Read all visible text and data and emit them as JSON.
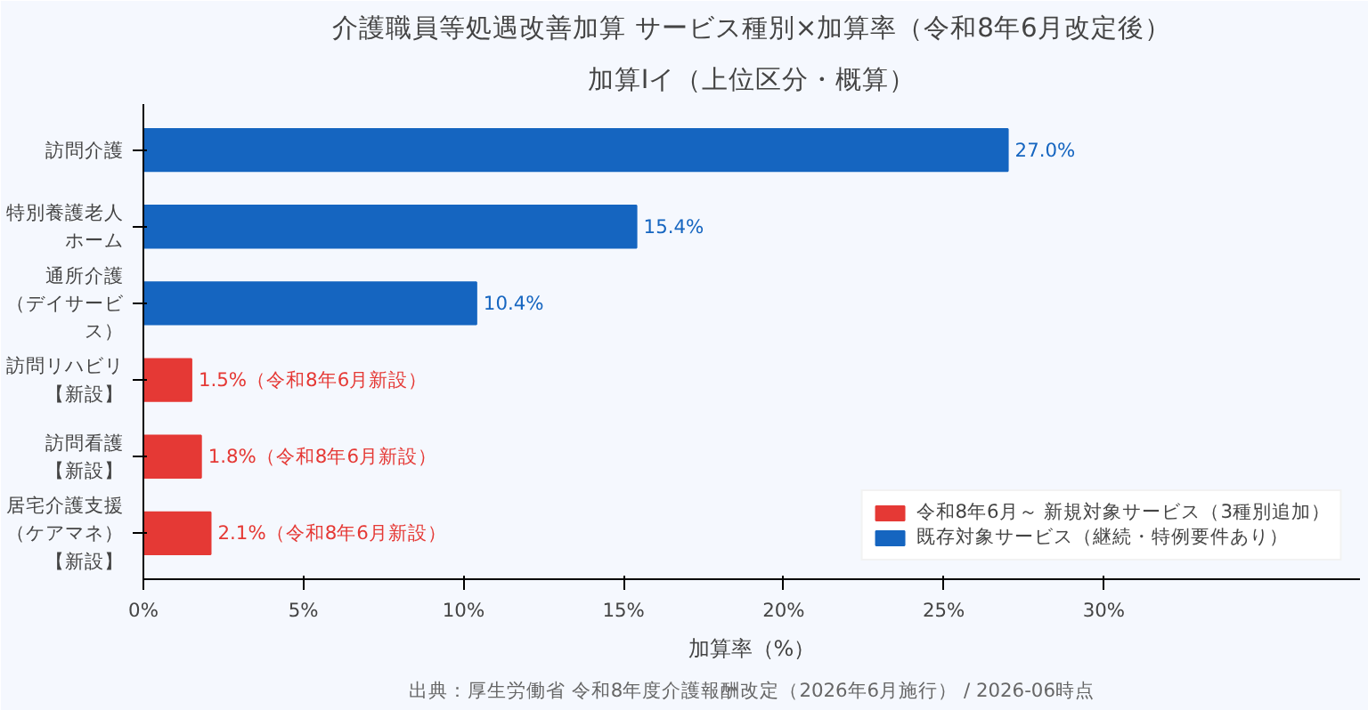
{
  "chart_data": {
    "type": "bar",
    "orientation": "horizontal",
    "title": "介護職員等処遇改善加算 サービス種別×加算率（令和8年6月改定後）",
    "subtitle": "加算Ⅰイ（上位区分・概算）",
    "xlabel": "加算率（%）",
    "categories": [
      "訪問介護",
      "特別養護老人ホーム",
      "通所介護（デイサービス）",
      "訪問リハビリ【新設】",
      "訪問看護【新設】",
      "居宅介護支援（ケアマネ）【新設】"
    ],
    "series": [
      {
        "name": "令和8年6月～ 新規対象サービス（3種別追加）",
        "color": "#e53935",
        "values": [
          null,
          null,
          null,
          1.5,
          1.8,
          2.1
        ],
        "value_labels": [
          null,
          null,
          null,
          "1.5%（令和8年6月新設）",
          "1.8%（令和8年6月新設）",
          "2.1%（令和8年6月新設）"
        ]
      },
      {
        "name": "既存対象サービス（継続・特例要件あり）",
        "color": "#1565c0",
        "values": [
          27.0,
          15.4,
          10.4,
          null,
          null,
          null
        ],
        "value_labels": [
          "27.0%",
          "15.4%",
          "10.4%",
          null,
          null,
          null
        ]
      }
    ],
    "xlim": [
      0,
      38
    ],
    "xticks": [
      {
        "value": 0,
        "label": "0%"
      },
      {
        "value": 5,
        "label": "5%"
      },
      {
        "value": 10,
        "label": "10%"
      },
      {
        "value": 15,
        "label": "15%"
      },
      {
        "value": 20,
        "label": "20%"
      },
      {
        "value": 25,
        "label": "25%"
      },
      {
        "value": 30,
        "label": "30%"
      }
    ],
    "grid": false,
    "legend": "bottom right",
    "annotations": [
      "出典：厚生労働省 令和8年度介護報酬改定（2026年6月施行） / 2026-06時点"
    ]
  }
}
